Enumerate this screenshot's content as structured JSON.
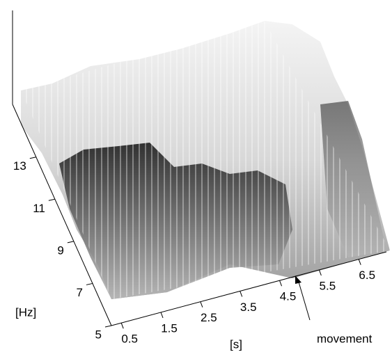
{
  "chart_data": {
    "type": "surface",
    "xlabel": "[s]",
    "ylabel": "[Hz]",
    "xlim": [
      0.25,
      7.2
    ],
    "xticks": [
      0.5,
      1.5,
      2.5,
      3.5,
      4.5,
      5.5,
      6.5
    ],
    "ylim": [
      5,
      15.5
    ],
    "yticks": [
      5,
      7,
      9,
      11,
      13
    ],
    "annotation": "movement"
  }
}
